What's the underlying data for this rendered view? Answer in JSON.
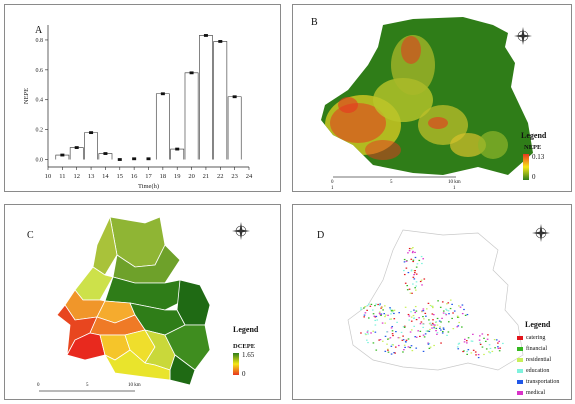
{
  "panels": {
    "a": {
      "label": "A"
    },
    "b": {
      "label": "B"
    },
    "c": {
      "label": "C"
    },
    "d": {
      "label": "D"
    }
  },
  "chart_data": {
    "type": "bar",
    "xlabel": "Time(h)",
    "ylabel": "NEPE",
    "x_ticks": [
      "10",
      "11",
      "12",
      "13",
      "14",
      "15",
      "16",
      "17",
      "18",
      "19",
      "20",
      "21",
      "22",
      "23",
      "24"
    ],
    "y_ticks": [
      "0.0",
      "0.2",
      "0.4",
      "0.6",
      "0.8"
    ],
    "ylim": [
      -0.05,
      0.9
    ],
    "xlim": [
      10,
      24
    ],
    "hours": [
      11,
      12,
      13,
      14,
      15,
      16,
      17,
      18,
      19,
      20,
      21,
      22,
      23
    ],
    "values": [
      0.03,
      0.08,
      0.18,
      0.04,
      0.0,
      0.005,
      0.005,
      0.44,
      0.07,
      0.58,
      0.83,
      0.79,
      0.42
    ]
  },
  "map_b": {
    "legend_title": "Legend",
    "legend_sub": "NEPE",
    "legend_max": "0.13",
    "legend_min": "0",
    "scale_labels": [
      "0",
      "5",
      "10 km"
    ],
    "scale_sub": [
      "1",
      "1"
    ],
    "colors": {
      "high": "#e8351f",
      "mid": "#f5e616",
      "low": "#2f7d18"
    }
  },
  "map_c": {
    "legend_title": "Legend",
    "legend_sub": "DCEPE",
    "legend_max": "1.65",
    "legend_min": "0",
    "scale_labels": [
      "0",
      "5",
      "10 km"
    ]
  },
  "map_d": {
    "legend_title": "Legend",
    "categories": [
      {
        "label": "catering",
        "color": "#e3151b"
      },
      {
        "label": "financial",
        "color": "#35b820"
      },
      {
        "label": "residential",
        "color": "#c8f05a"
      },
      {
        "label": "education",
        "color": "#7ff2dd"
      },
      {
        "label": "transportation",
        "color": "#2057e8"
      },
      {
        "label": "medical",
        "color": "#d933c9"
      }
    ]
  },
  "north_arrow": {
    "n": "N",
    "s": "S",
    "e": "E",
    "w": "W"
  }
}
